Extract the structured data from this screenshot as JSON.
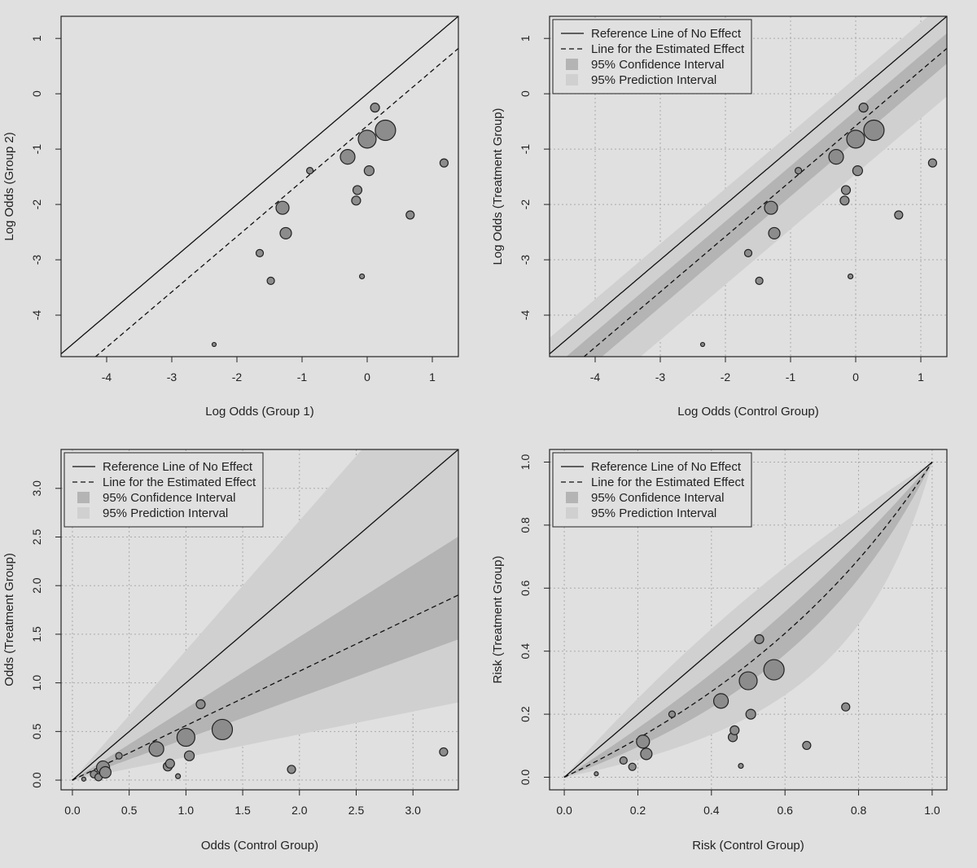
{
  "colors": {
    "background": "#e0e0e0",
    "prediction_band": "#d0d0d0",
    "confidence_band": "#b4b4b4",
    "point_fill": "#8c8c8c",
    "line": "#111111"
  },
  "legend_labels": {
    "reference": "Reference Line of No Effect",
    "estimate": "Line for the Estimated Effect",
    "ci": "95% Confidence Interval",
    "pi": "95% Prediction Interval"
  },
  "chart_data": [
    {
      "type": "scatter",
      "title": "",
      "xlabel": "Log Odds (Group 1)",
      "ylabel": "Log Odds (Group 2)",
      "xlim": [
        -4.7,
        1.4
      ],
      "ylim": [
        -4.75,
        1.4
      ],
      "xticks": [
        "-4",
        "-3",
        "-2",
        "-1",
        "0",
        "1"
      ],
      "yticks": [
        "-4",
        "-3",
        "-2",
        "-1",
        "0",
        "1"
      ],
      "grid": false,
      "legend": false,
      "bands": false,
      "scale": "logodds",
      "points": [
        {
          "x": -2.35,
          "y": -4.53,
          "r": 2.5
        },
        {
          "x": -1.65,
          "y": -2.88,
          "r": 4.5
        },
        {
          "x": -1.48,
          "y": -3.38,
          "r": 4.5
        },
        {
          "x": -1.3,
          "y": -2.06,
          "r": 8
        },
        {
          "x": -1.25,
          "y": -2.52,
          "r": 7
        },
        {
          "x": -0.88,
          "y": -1.39,
          "r": 4
        },
        {
          "x": -0.3,
          "y": -1.14,
          "r": 9
        },
        {
          "x": -0.17,
          "y": -1.93,
          "r": 5.5
        },
        {
          "x": -0.15,
          "y": -1.74,
          "r": 5.5
        },
        {
          "x": -0.08,
          "y": -3.3,
          "r": 3
        },
        {
          "x": 0.0,
          "y": -0.82,
          "r": 11
        },
        {
          "x": 0.03,
          "y": -1.39,
          "r": 6
        },
        {
          "x": 0.12,
          "y": -0.25,
          "r": 5.5
        },
        {
          "x": 0.28,
          "y": -0.66,
          "r": 12.5
        },
        {
          "x": 0.66,
          "y": -2.19,
          "r": 5
        },
        {
          "x": 1.18,
          "y": -1.25,
          "r": 5
        }
      ]
    },
    {
      "type": "scatter",
      "title": "",
      "xlabel": "Log Odds (Control Group)",
      "ylabel": "Log Odds (Treatment Group)",
      "xlim": [
        -4.7,
        1.4
      ],
      "ylim": [
        -4.75,
        1.4
      ],
      "xticks": [
        "-4",
        "-3",
        "-2",
        "-1",
        "0",
        "1"
      ],
      "yticks": [
        "-4",
        "-3",
        "-2",
        "-1",
        "0",
        "1"
      ],
      "grid": true,
      "legend": "top-left",
      "bands": true,
      "scale": "logodds",
      "points": [
        {
          "x": -2.35,
          "y": -4.53,
          "r": 2.5
        },
        {
          "x": -1.65,
          "y": -2.88,
          "r": 4.5
        },
        {
          "x": -1.48,
          "y": -3.38,
          "r": 4.5
        },
        {
          "x": -1.3,
          "y": -2.06,
          "r": 8
        },
        {
          "x": -1.25,
          "y": -2.52,
          "r": 7
        },
        {
          "x": -0.88,
          "y": -1.39,
          "r": 4
        },
        {
          "x": -0.3,
          "y": -1.14,
          "r": 9
        },
        {
          "x": -0.17,
          "y": -1.93,
          "r": 5.5
        },
        {
          "x": -0.15,
          "y": -1.74,
          "r": 5.5
        },
        {
          "x": -0.08,
          "y": -3.3,
          "r": 3
        },
        {
          "x": 0.0,
          "y": -0.82,
          "r": 11
        },
        {
          "x": 0.03,
          "y": -1.39,
          "r": 6
        },
        {
          "x": 0.12,
          "y": -0.25,
          "r": 5.5
        },
        {
          "x": 0.28,
          "y": -0.66,
          "r": 12.5
        },
        {
          "x": 0.66,
          "y": -2.19,
          "r": 5
        },
        {
          "x": 1.18,
          "y": -1.25,
          "r": 5
        }
      ]
    },
    {
      "type": "scatter",
      "title": "",
      "xlabel": "Odds (Control Group)",
      "ylabel": "Odds (Treatment Group)",
      "xlim": [
        -0.1,
        3.4
      ],
      "ylim": [
        -0.1,
        3.4
      ],
      "xticks": [
        "0.0",
        "0.5",
        "1.0",
        "1.5",
        "2.0",
        "2.5",
        "3.0"
      ],
      "yticks": [
        "0.0",
        "0.5",
        "1.0",
        "1.5",
        "2.0",
        "2.5",
        "3.0"
      ],
      "grid": true,
      "legend": "top-left",
      "bands": true,
      "scale": "odds",
      "points": [
        {
          "x": 0.1,
          "y": 0.01,
          "r": 2.5
        },
        {
          "x": 0.19,
          "y": 0.06,
          "r": 4.5
        },
        {
          "x": 0.23,
          "y": 0.03,
          "r": 4.5
        },
        {
          "x": 0.27,
          "y": 0.13,
          "r": 8
        },
        {
          "x": 0.29,
          "y": 0.08,
          "r": 7
        },
        {
          "x": 0.41,
          "y": 0.25,
          "r": 4
        },
        {
          "x": 0.74,
          "y": 0.32,
          "r": 9
        },
        {
          "x": 0.84,
          "y": 0.14,
          "r": 5.5
        },
        {
          "x": 0.86,
          "y": 0.17,
          "r": 5.5
        },
        {
          "x": 0.93,
          "y": 0.04,
          "r": 3
        },
        {
          "x": 1.0,
          "y": 0.44,
          "r": 11
        },
        {
          "x": 1.03,
          "y": 0.25,
          "r": 6
        },
        {
          "x": 1.13,
          "y": 0.78,
          "r": 5.5
        },
        {
          "x": 1.32,
          "y": 0.52,
          "r": 12.5
        },
        {
          "x": 1.93,
          "y": 0.11,
          "r": 5
        },
        {
          "x": 3.27,
          "y": 0.29,
          "r": 5
        }
      ]
    },
    {
      "type": "scatter",
      "title": "",
      "xlabel": "Risk (Control Group)",
      "ylabel": "Risk (Treatment Group)",
      "xlim": [
        -0.04,
        1.04
      ],
      "ylim": [
        -0.04,
        1.04
      ],
      "xticks": [
        "0.0",
        "0.2",
        "0.4",
        "0.6",
        "0.8",
        "1.0"
      ],
      "yticks": [
        "0.0",
        "0.2",
        "0.4",
        "0.6",
        "0.8",
        "1.0"
      ],
      "grid": true,
      "legend": "top-left",
      "bands": true,
      "scale": "risk",
      "points": [
        {
          "x": 0.087,
          "y": 0.011,
          "r": 2.5
        },
        {
          "x": 0.161,
          "y": 0.053,
          "r": 4.5
        },
        {
          "x": 0.185,
          "y": 0.033,
          "r": 4.5
        },
        {
          "x": 0.214,
          "y": 0.113,
          "r": 8
        },
        {
          "x": 0.223,
          "y": 0.074,
          "r": 7
        },
        {
          "x": 0.293,
          "y": 0.2,
          "r": 4
        },
        {
          "x": 0.426,
          "y": 0.242,
          "r": 9
        },
        {
          "x": 0.458,
          "y": 0.127,
          "r": 5.5
        },
        {
          "x": 0.463,
          "y": 0.149,
          "r": 5.5
        },
        {
          "x": 0.48,
          "y": 0.036,
          "r": 3
        },
        {
          "x": 0.5,
          "y": 0.306,
          "r": 11
        },
        {
          "x": 0.507,
          "y": 0.2,
          "r": 6
        },
        {
          "x": 0.53,
          "y": 0.438,
          "r": 5.5
        },
        {
          "x": 0.57,
          "y": 0.341,
          "r": 12.5
        },
        {
          "x": 0.659,
          "y": 0.101,
          "r": 5
        },
        {
          "x": 0.765,
          "y": 0.223,
          "r": 5
        }
      ]
    }
  ]
}
